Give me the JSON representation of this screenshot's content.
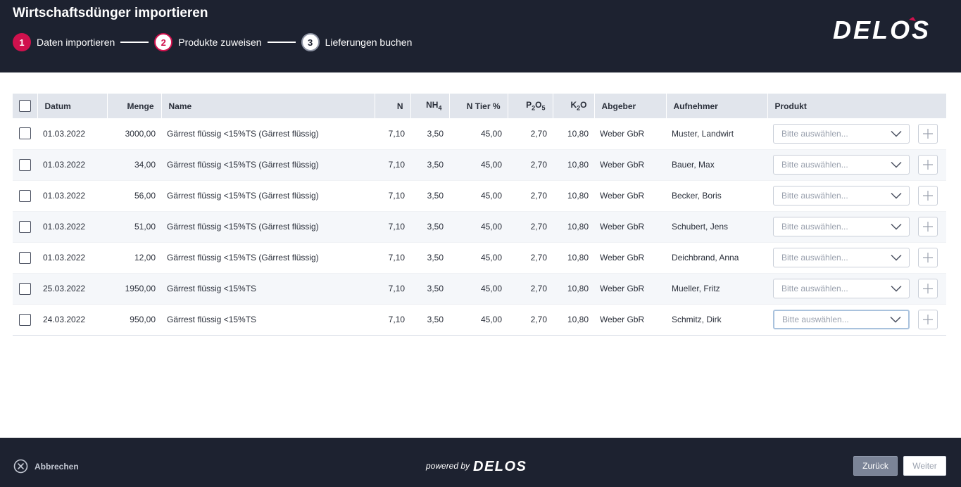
{
  "header": {
    "title": "Wirtschaftsdünger importieren",
    "steps": [
      {
        "num": "1",
        "label": "Daten importieren"
      },
      {
        "num": "2",
        "label": "Produkte zuweisen"
      },
      {
        "num": "3",
        "label": "Lieferungen buchen"
      }
    ],
    "logo_text": "DELOS"
  },
  "table": {
    "columns": {
      "datum": "Datum",
      "menge": "Menge",
      "name": "Name",
      "n": "N",
      "nh4_base": "NH",
      "nh4_sub": "4",
      "ntier": "N Tier %",
      "p2o5_a": "P",
      "p2o5_s1": "2",
      "p2o5_b": "O",
      "p2o5_s2": "5",
      "k2o_a": "K",
      "k2o_s": "2",
      "k2o_b": "O",
      "abgeber": "Abgeber",
      "aufnehmer": "Aufnehmer",
      "produkt": "Produkt"
    },
    "select_placeholder": "Bitte auswählen...",
    "rows": [
      {
        "datum": "01.03.2022",
        "menge": "3000,00",
        "name": "Gärrest flüssig <15%TS (Gärrest flüssig)",
        "n": "7,10",
        "nh4": "3,50",
        "ntier": "45,00",
        "p2o5": "2,70",
        "k2o": "10,80",
        "abgeber": "Weber GbR",
        "aufnehmer": "Muster, Landwirt"
      },
      {
        "datum": "01.03.2022",
        "menge": "34,00",
        "name": "Gärrest flüssig <15%TS (Gärrest flüssig)",
        "n": "7,10",
        "nh4": "3,50",
        "ntier": "45,00",
        "p2o5": "2,70",
        "k2o": "10,80",
        "abgeber": "Weber GbR",
        "aufnehmer": "Bauer, Max"
      },
      {
        "datum": "01.03.2022",
        "menge": "56,00",
        "name": "Gärrest flüssig <15%TS (Gärrest flüssig)",
        "n": "7,10",
        "nh4": "3,50",
        "ntier": "45,00",
        "p2o5": "2,70",
        "k2o": "10,80",
        "abgeber": "Weber GbR",
        "aufnehmer": "Becker, Boris"
      },
      {
        "datum": "01.03.2022",
        "menge": "51,00",
        "name": "Gärrest flüssig <15%TS (Gärrest flüssig)",
        "n": "7,10",
        "nh4": "3,50",
        "ntier": "45,00",
        "p2o5": "2,70",
        "k2o": "10,80",
        "abgeber": "Weber GbR",
        "aufnehmer": "Schubert, Jens"
      },
      {
        "datum": "01.03.2022",
        "menge": "12,00",
        "name": "Gärrest flüssig <15%TS (Gärrest flüssig)",
        "n": "7,10",
        "nh4": "3,50",
        "ntier": "45,00",
        "p2o5": "2,70",
        "k2o": "10,80",
        "abgeber": "Weber GbR",
        "aufnehmer": "Deichbrand, Anna"
      },
      {
        "datum": "25.03.2022",
        "menge": "1950,00",
        "name": "Gärrest flüssig <15%TS",
        "n": "7,10",
        "nh4": "3,50",
        "ntier": "45,00",
        "p2o5": "2,70",
        "k2o": "10,80",
        "abgeber": "Weber GbR",
        "aufnehmer": "Mueller, Fritz"
      },
      {
        "datum": "24.03.2022",
        "menge": "950,00",
        "name": "Gärrest flüssig <15%TS",
        "n": "7,10",
        "nh4": "3,50",
        "ntier": "45,00",
        "p2o5": "2,70",
        "k2o": "10,80",
        "abgeber": "Weber GbR",
        "aufnehmer": "Schmitz, Dirk"
      }
    ]
  },
  "footer": {
    "cancel_label": "Abbrechen",
    "powered_by": "powered by",
    "powered_logo": "DELOS",
    "back_label": "Zurück",
    "next_label": "Weiter"
  },
  "colors": {
    "header_bg": "#1d2230",
    "accent": "#d0114d",
    "table_header_bg": "#e1e5ec",
    "back_button_bg": "#7b8497"
  },
  "icons": [
    "checkbox",
    "chevron-down-icon",
    "plus-icon",
    "close-circle-icon",
    "delos-logo"
  ]
}
